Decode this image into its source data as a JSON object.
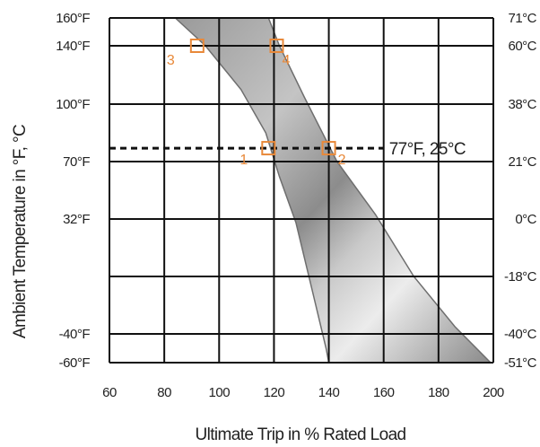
{
  "chart_data": {
    "type": "area",
    "title": "",
    "xlabel": "Ultimate Trip in % Rated Load",
    "ylabel": "Ambient Temperature in °F, °C",
    "xlim": [
      60,
      200
    ],
    "x_ticks": [
      60,
      80,
      100,
      120,
      140,
      160,
      180,
      200
    ],
    "x_tick_labels": [
      "60",
      "80",
      "100",
      "120",
      "140",
      "160",
      "180",
      "200"
    ],
    "y_ticks_left": [
      {
        "value": 160,
        "label": "160°F"
      },
      {
        "value": 140,
        "label": "140°F"
      },
      {
        "value": 100,
        "label": "100°F"
      },
      {
        "value": 70,
        "label": "70°F"
      },
      {
        "value": 32,
        "label": "32°F"
      },
      {
        "value": -40,
        "label": "-40°F"
      },
      {
        "value": -60,
        "label": "-60°F"
      }
    ],
    "y_ticks_right": [
      {
        "value": 160,
        "label": "71°C"
      },
      {
        "value": 140,
        "label": "60°C"
      },
      {
        "value": 100,
        "label": "38°C"
      },
      {
        "value": 70,
        "label": "21°C"
      },
      {
        "value": 32,
        "label": "0°C"
      },
      {
        "value": 0,
        "label": "-18°C"
      },
      {
        "value": -40,
        "label": "-40°C"
      },
      {
        "value": -60,
        "label": "-51°C"
      }
    ],
    "horizontal_gridlines_at": [
      160,
      140,
      100,
      70,
      32,
      0,
      -40,
      -60
    ],
    "vertical_gridlines_at": [
      60,
      80,
      100,
      120,
      140,
      160,
      180,
      200
    ],
    "band": {
      "lower_edge": [
        {
          "x": 84,
          "y": 160
        },
        {
          "x": 95,
          "y": 140
        },
        {
          "x": 108,
          "y": 110
        },
        {
          "x": 117,
          "y": 85
        },
        {
          "x": 122,
          "y": 60
        },
        {
          "x": 128,
          "y": 30
        },
        {
          "x": 134,
          "y": -10
        },
        {
          "x": 139,
          "y": -50
        },
        {
          "x": 140,
          "y": -60
        }
      ],
      "upper_edge": [
        {
          "x": 118,
          "y": 160
        },
        {
          "x": 122,
          "y": 140
        },
        {
          "x": 131,
          "y": 105
        },
        {
          "x": 143,
          "y": 70
        },
        {
          "x": 157,
          "y": 35
        },
        {
          "x": 171,
          "y": 0
        },
        {
          "x": 186,
          "y": -35
        },
        {
          "x": 199,
          "y": -60
        }
      ]
    },
    "reference_line": {
      "y": 77,
      "x_start": 60,
      "x_end": 160,
      "label": "77°F, 25°C"
    },
    "markers": [
      {
        "label": "1",
        "x": 118,
        "y": 77
      },
      {
        "label": "2",
        "x": 140,
        "y": 77
      },
      {
        "label": "3",
        "x": 92,
        "y": 140
      },
      {
        "label": "4",
        "x": 121,
        "y": 140
      }
    ],
    "grid": true,
    "legend": "none"
  }
}
